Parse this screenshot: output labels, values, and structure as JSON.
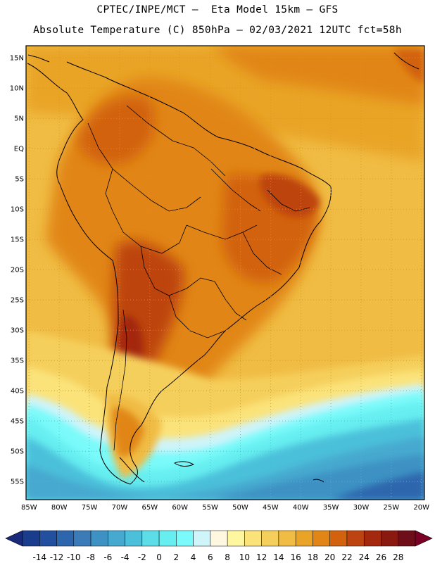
{
  "header": {
    "line1": "CPTEC/INPE/MCT –  Eta Model 15km – GFS",
    "line2": "Absolute Temperature (C) 850hPa – 02/03/2021 12UTC fct=58h"
  },
  "map": {
    "lat_labels": [
      "15N",
      "10N",
      "5N",
      "EQ",
      "5S",
      "10S",
      "15S",
      "20S",
      "25S",
      "30S",
      "35S",
      "40S",
      "45S",
      "50S",
      "55S"
    ],
    "lon_labels": [
      "85W",
      "80W",
      "75W",
      "70W",
      "65W",
      "60W",
      "55W",
      "50W",
      "45W",
      "40W",
      "35W",
      "30W",
      "25W",
      "20W"
    ],
    "lat_values": [
      15,
      10,
      5,
      0,
      -5,
      -10,
      -15,
      -20,
      -25,
      -30,
      -35,
      -40,
      -45,
      -50,
      -55
    ],
    "lon_values": [
      -85,
      -80,
      -75,
      -70,
      -65,
      -60,
      -55,
      -50,
      -45,
      -40,
      -35,
      -30,
      -25,
      -20
    ],
    "extent": {
      "lon_min": -85.5,
      "lon_max": -19.5,
      "lat_min": -58,
      "lat_max": 17
    },
    "grid": true,
    "overlays": [
      "coastlines",
      "country-borders",
      "brazil-state-borders"
    ]
  },
  "colorbar": {
    "labels": [
      "-14",
      "-12",
      "-10",
      "-8",
      "-6",
      "-4",
      "-2",
      "0",
      "2",
      "4",
      "6",
      "8",
      "10",
      "12",
      "14",
      "16",
      "18",
      "20",
      "22",
      "24",
      "26",
      "28"
    ],
    "colors": [
      "#1a3c8c",
      "#23509e",
      "#2d66ad",
      "#3a7bb8",
      "#3d92c3",
      "#46a9cf",
      "#4cc0da",
      "#5cdde8",
      "#66eef0",
      "#7afafa",
      "#cff4fa",
      "#fff8e0",
      "#fff6a0",
      "#fbe37a",
      "#f5cf5c",
      "#f0bc44",
      "#e9a428",
      "#e18616",
      "#d2620d",
      "#bd4410",
      "#a3280e",
      "#8a1a10",
      "#6e0e18"
    ],
    "under_color": "#1a2a7a",
    "over_color": "#7a0026"
  }
}
